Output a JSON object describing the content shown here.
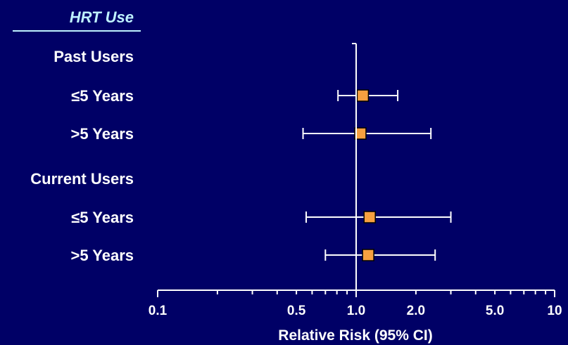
{
  "colors": {
    "background": "#000066",
    "axis": "#ffffff",
    "header": "#bff2ff",
    "marker_fill": "#f7a040",
    "marker_stroke": "#000000"
  },
  "header": {
    "title": "HRT Use"
  },
  "chart_data": {
    "type": "scatter",
    "subtype": "forest-plot",
    "xscale": "log",
    "xlim": [
      0.1,
      10
    ],
    "xlabel": "Relative Risk (95% CI)",
    "reference_line": 1.0,
    "xtick_labels": [
      {
        "value": 0.1,
        "label": "0.1"
      },
      {
        "value": 0.5,
        "label": "0.5"
      },
      {
        "value": 1.0,
        "label": "1.0"
      },
      {
        "value": 2.0,
        "label": "2.0"
      },
      {
        "value": 5.0,
        "label": "5.0"
      },
      {
        "value": 10,
        "label": "10"
      }
    ],
    "rows": [
      {
        "label": "Past Users",
        "group": true
      },
      {
        "label": "≤5 Years",
        "group": false,
        "rr": 1.08,
        "lo": 0.81,
        "hi": 1.62
      },
      {
        "label": ">5 Years",
        "group": false,
        "rr": 1.05,
        "lo": 0.54,
        "hi": 2.38
      },
      {
        "label": "Current Users",
        "group": true
      },
      {
        "label": "≤5 Years",
        "group": false,
        "rr": 1.17,
        "lo": 0.56,
        "hi": 3.0
      },
      {
        "label": ">5 Years",
        "group": false,
        "rr": 1.15,
        "lo": 0.7,
        "hi": 2.5
      }
    ]
  }
}
